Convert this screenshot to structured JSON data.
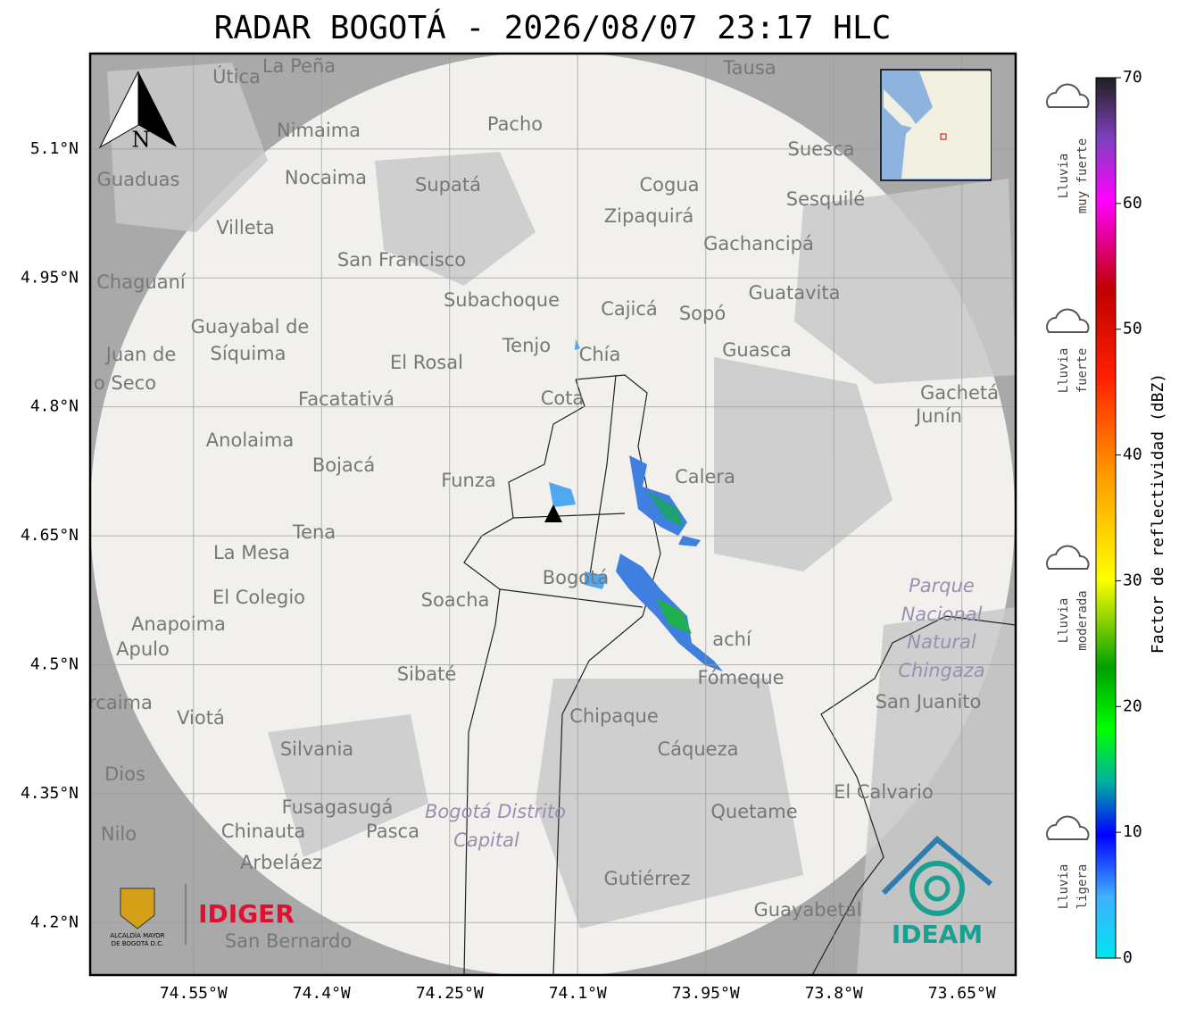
{
  "title": "RADAR BOGOTÁ - 2026/08/07 23:17 HLC",
  "map": {
    "lonlim": [
      -74.671,
      -73.587
    ],
    "latlim": [
      4.139,
      5.211
    ],
    "lon_ticks": [
      {
        "value": -74.55,
        "label": "74.55°W"
      },
      {
        "value": -74.4,
        "label": "74.4°W"
      },
      {
        "value": -74.25,
        "label": "74.25°W"
      },
      {
        "value": -74.1,
        "label": "74.1°W"
      },
      {
        "value": -73.95,
        "label": "73.95°W"
      },
      {
        "value": -73.8,
        "label": "73.8°W"
      },
      {
        "value": -73.65,
        "label": "73.65°W"
      }
    ],
    "lat_ticks": [
      {
        "value": 5.1,
        "label": "5.1°N"
      },
      {
        "value": 4.95,
        "label": "4.95°N"
      },
      {
        "value": 4.8,
        "label": "4.8°N"
      },
      {
        "value": 4.65,
        "label": "4.65°N"
      },
      {
        "value": 4.5,
        "label": "4.5°N"
      },
      {
        "value": 4.35,
        "label": "4.35°N"
      },
      {
        "value": 4.2,
        "label": "4.2°N"
      }
    ],
    "north": "N",
    "places": [
      "La Peña",
      "Útica",
      "Tausa",
      "Pacho",
      "Nimaima",
      "Guaduas",
      "Nocaima",
      "Supatá",
      "Suesca",
      "Cogua",
      "Sesquilé",
      "Zipaquirá",
      "Villeta",
      "Gachancipá",
      "San Francisco",
      "Chaguaní",
      "Guatavita",
      "Subachoque",
      "Cajicá",
      "Sopó",
      "Guayabal de",
      "Síquima",
      "Tenjo",
      "Guasca",
      "Chía",
      "Juan de",
      "o Seco",
      "El Rosal",
      "Cota",
      "Facatativá",
      "Gachetá",
      "Junín",
      "Anolaima",
      "Bojacá",
      "Calera",
      "Funza",
      "Tena",
      "La Mesa",
      "Bogotá",
      "Soacha",
      "El Colegio",
      "Parque",
      "Nacional",
      "Natural",
      "Chingaza",
      "Anapoima",
      "Apulo",
      "achí",
      "Sibaté",
      "Fómeque",
      "San Juanito",
      "rcaima",
      "Viotá",
      "Chipaque",
      "Silvania",
      "Cáqueza",
      "Dios",
      "El Calvario",
      "Fusagasugá",
      "Bogotá Distrito",
      "Capital",
      "Quetame",
      "Nilo",
      "Chinauta",
      "Pasca",
      "Arbeláez",
      "Gutiérrez",
      "Guayabetal",
      "San Bernardo"
    ]
  },
  "colorbar": {
    "label": "Factor de reflectividad (dBZ)",
    "clim": [
      0,
      70
    ],
    "ticks": [
      0,
      10,
      20,
      30,
      40,
      50,
      60,
      70
    ]
  },
  "rain_classes": [
    [
      "Lluvia",
      "muy fuerte"
    ],
    [
      "Lluvia",
      "fuerte"
    ],
    [
      "Lluvia",
      "moderada"
    ],
    [
      "Lluvia",
      "ligera"
    ]
  ],
  "logos": {
    "alcaldia": [
      "ALCALDÍA MAYOR",
      "DE BOGOTÁ D.C."
    ],
    "idiger": "IDIGER",
    "ideam": "IDEAM"
  }
}
